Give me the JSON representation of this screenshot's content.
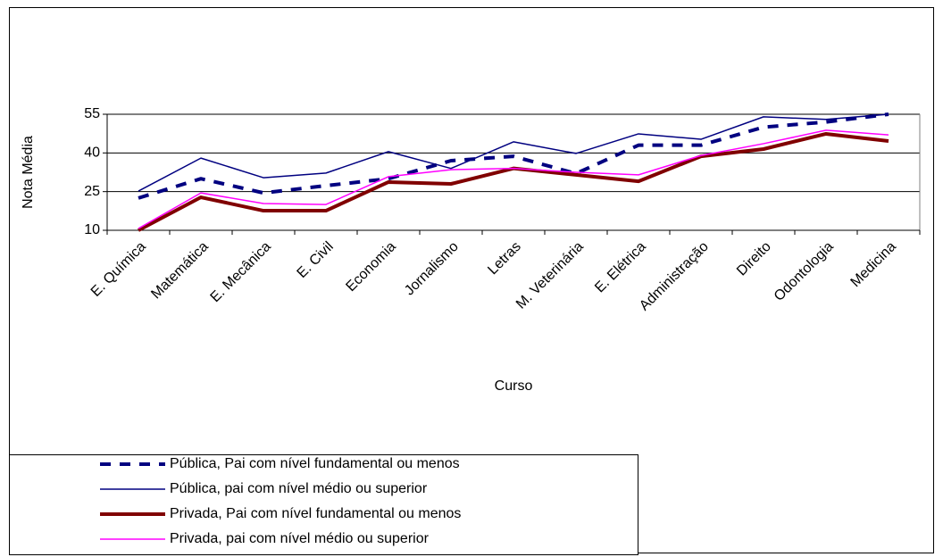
{
  "chart_data": {
    "type": "line",
    "y_label": "Nota Média",
    "x_label": "Curso",
    "categories": [
      "E. Química",
      "Matemática",
      "E. Mecânica",
      "E. Civil",
      "Economia",
      "Jornalismo",
      "Letras",
      "M. Veterinária",
      "E. Elétrica",
      "Administração",
      "Direito",
      "Odontologia",
      "Medicina"
    ],
    "series": [
      {
        "name": "Pública, Pai com nível fundamental ou menos",
        "color": "#000080",
        "linestyle": "dashed",
        "linewidth": 4,
        "values": [
          22.5,
          30,
          24.5,
          27.3,
          30,
          37,
          38.7,
          32,
          43,
          43,
          50,
          52,
          55
        ]
      },
      {
        "name": "Pública, pai com nível médio ou superior",
        "color": "#000080",
        "linestyle": "solid",
        "linewidth": 1.5,
        "values": [
          25.2,
          38,
          30.4,
          32.2,
          40.5,
          34,
          44.3,
          39.8,
          47.4,
          45.3,
          54,
          53,
          55
        ]
      },
      {
        "name": "Privada, Pai com nível fundamental ou menos",
        "color": "#800000",
        "linestyle": "solid",
        "linewidth": 4,
        "values": [
          10,
          22.8,
          17.6,
          17.6,
          28.7,
          28,
          34,
          31.5,
          29,
          38.7,
          41.5,
          47.4,
          44.6
        ]
      },
      {
        "name": "Privada, pai com nível médio ou superior",
        "color": "#ff00ff",
        "linestyle": "solid",
        "linewidth": 1.5,
        "values": [
          10.7,
          24.5,
          20.4,
          20,
          30.8,
          33.5,
          34,
          32.5,
          31.5,
          39,
          43.6,
          48.8,
          47
        ]
      }
    ],
    "ylim": [
      10,
      55
    ],
    "yticks": [
      10,
      25,
      40,
      55
    ],
    "grid": true,
    "legend": "bottom-left"
  }
}
